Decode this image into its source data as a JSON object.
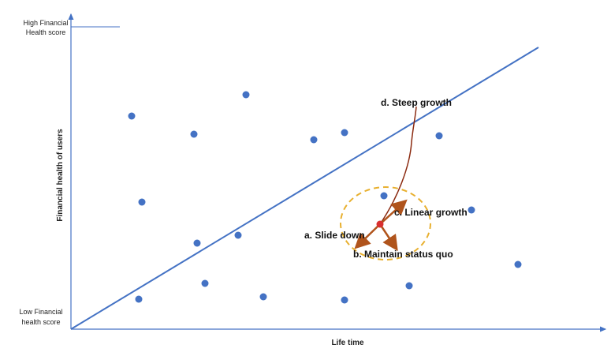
{
  "axes": {
    "x_label": "Life time",
    "y_label": "Financial health of users",
    "high_label": [
      "High Financial",
      "Health score"
    ],
    "low_label": [
      "Low Financial",
      "health score"
    ]
  },
  "annotations": {
    "slide_down": "a. Slide down",
    "status_quo": "b. Maintain status quo",
    "linear_growth": "c. Linear growth",
    "steep_growth": "d. Steep growth"
  }
}
